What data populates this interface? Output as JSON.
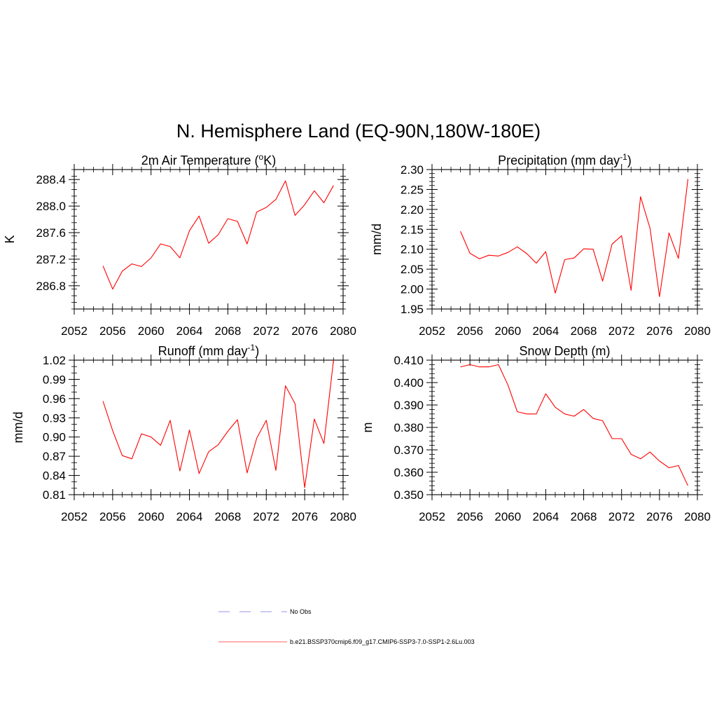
{
  "title": "N. Hemisphere Land (EQ-90N,180W-180E)",
  "chart_data": [
    {
      "type": "line",
      "title": "2m Air Temperature (",
      "title_sup": "o",
      "title_tail": "K)",
      "ylabel": "K",
      "xlim": [
        2052,
        2080
      ],
      "ylim": [
        286.45,
        288.55
      ],
      "xticks": [
        2052,
        2056,
        2060,
        2064,
        2068,
        2072,
        2076,
        2080
      ],
      "xtick_labels": [
        "2052",
        "2056",
        "2060",
        "2064",
        "2068",
        "2072",
        "2076",
        "2080"
      ],
      "yticks": [
        286.8,
        287.2,
        287.6,
        288.0,
        288.4
      ],
      "ytick_labels": [
        "286.8",
        "287.2",
        "287.6",
        "288.0",
        "288.4"
      ],
      "yminor_step": 0.1,
      "series": [
        {
          "color": "#ff0000",
          "x": [
            2055,
            2056,
            2057,
            2058,
            2059,
            2060,
            2061,
            2062,
            2063,
            2064,
            2065,
            2066,
            2067,
            2068,
            2069,
            2070,
            2071,
            2072,
            2073,
            2074,
            2075,
            2076,
            2077,
            2078,
            2079
          ],
          "y": [
            287.1,
            286.75,
            287.02,
            287.13,
            287.09,
            287.22,
            287.43,
            287.39,
            287.22,
            287.63,
            287.85,
            287.44,
            287.57,
            287.81,
            287.77,
            287.43,
            287.91,
            287.98,
            288.1,
            288.38,
            287.86,
            288.02,
            288.23,
            288.05,
            288.31
          ]
        }
      ]
    },
    {
      "type": "line",
      "title": "Precipitation (mm day",
      "title_sup": "-1",
      "title_tail": ")",
      "ylabel": "mm/d",
      "xlim": [
        2052,
        2080
      ],
      "ylim": [
        1.95,
        2.3
      ],
      "xticks": [
        2052,
        2056,
        2060,
        2064,
        2068,
        2072,
        2076,
        2080
      ],
      "xtick_labels": [
        "2052",
        "2056",
        "2060",
        "2064",
        "2068",
        "2072",
        "2076",
        "2080"
      ],
      "yticks": [
        1.95,
        2.0,
        2.05,
        2.1,
        2.15,
        2.2,
        2.25,
        2.3
      ],
      "ytick_labels": [
        "1.95",
        "2.00",
        "2.05",
        "2.10",
        "2.15",
        "2.20",
        "2.25",
        "2.30"
      ],
      "yminor_step": 0.01,
      "series": [
        {
          "color": "#ff0000",
          "x": [
            2055,
            2056,
            2057,
            2058,
            2059,
            2060,
            2061,
            2062,
            2063,
            2064,
            2065,
            2066,
            2067,
            2068,
            2069,
            2070,
            2071,
            2072,
            2073,
            2074,
            2075,
            2076,
            2077,
            2078,
            2079
          ],
          "y": [
            2.145,
            2.09,
            2.076,
            2.085,
            2.083,
            2.092,
            2.106,
            2.089,
            2.065,
            2.094,
            1.99,
            2.074,
            2.078,
            2.101,
            2.1,
            2.02,
            2.113,
            2.134,
            1.997,
            2.232,
            2.153,
            1.981,
            2.141,
            2.077,
            2.276
          ]
        }
      ]
    },
    {
      "type": "line",
      "title": "Runoff (mm day",
      "title_sup": "-1",
      "title_tail": ")",
      "ylabel": "mm/d",
      "xlim": [
        2052,
        2080
      ],
      "ylim": [
        0.81,
        1.02
      ],
      "xticks": [
        2052,
        2056,
        2060,
        2064,
        2068,
        2072,
        2076,
        2080
      ],
      "xtick_labels": [
        "2052",
        "2056",
        "2060",
        "2064",
        "2068",
        "2072",
        "2076",
        "2080"
      ],
      "yticks": [
        0.81,
        0.84,
        0.87,
        0.9,
        0.93,
        0.96,
        0.99,
        1.02
      ],
      "ytick_labels": [
        "0.81",
        "0.84",
        "0.87",
        "0.90",
        "0.93",
        "0.96",
        "0.99",
        "1.02"
      ],
      "yminor_step": 0.01,
      "series": [
        {
          "color": "#ff0000",
          "x": [
            2055,
            2056,
            2057,
            2058,
            2059,
            2060,
            2061,
            2062,
            2063,
            2064,
            2065,
            2066,
            2067,
            2068,
            2069,
            2070,
            2071,
            2072,
            2073,
            2074,
            2075,
            2076,
            2077,
            2078,
            2079
          ],
          "y": [
            0.956,
            0.91,
            0.871,
            0.866,
            0.905,
            0.9,
            0.887,
            0.926,
            0.847,
            0.911,
            0.843,
            0.877,
            0.888,
            0.909,
            0.927,
            0.844,
            0.898,
            0.926,
            0.848,
            0.98,
            0.952,
            0.821,
            0.928,
            0.89,
            1.02
          ]
        }
      ]
    },
    {
      "type": "line",
      "title": "Snow Depth (m)",
      "title_sup": "",
      "title_tail": "",
      "ylabel": "m",
      "xlim": [
        2052,
        2080
      ],
      "ylim": [
        0.35,
        0.41
      ],
      "xticks": [
        2052,
        2056,
        2060,
        2064,
        2068,
        2072,
        2076,
        2080
      ],
      "xtick_labels": [
        "2052",
        "2056",
        "2060",
        "2064",
        "2068",
        "2072",
        "2076",
        "2080"
      ],
      "yticks": [
        0.35,
        0.36,
        0.37,
        0.38,
        0.39,
        0.4,
        0.41
      ],
      "ytick_labels": [
        "0.350",
        "0.360",
        "0.370",
        "0.380",
        "0.390",
        "0.400",
        "0.410"
      ],
      "yminor_step": 0.002,
      "series": [
        {
          "color": "#ff0000",
          "x": [
            2055,
            2056,
            2057,
            2058,
            2059,
            2060,
            2061,
            2062,
            2063,
            2064,
            2065,
            2066,
            2067,
            2068,
            2069,
            2070,
            2071,
            2072,
            2073,
            2074,
            2075,
            2076,
            2077,
            2078,
            2079
          ],
          "y": [
            0.407,
            0.408,
            0.407,
            0.407,
            0.408,
            0.399,
            0.387,
            0.386,
            0.386,
            0.395,
            0.389,
            0.386,
            0.385,
            0.388,
            0.384,
            0.383,
            0.375,
            0.375,
            0.368,
            0.366,
            0.369,
            0.365,
            0.362,
            0.363,
            0.354
          ]
        }
      ]
    }
  ],
  "legend": [
    {
      "label": "No Obs",
      "color": "#aaaaee",
      "dash": true
    },
    {
      "label": "b.e21.BSSP370cmip6.f09_g17.CMIP6-SSP3-7.0-SSP1-2.6Lu.003",
      "color": "#ff8080",
      "dash": false
    }
  ]
}
